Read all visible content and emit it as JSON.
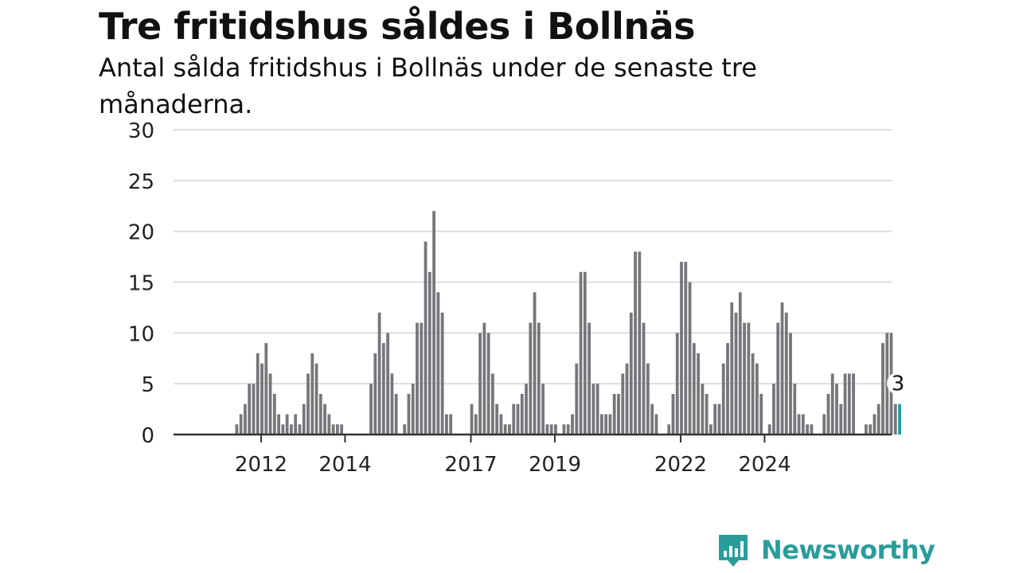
{
  "title": "Tre fritidshus såldes i Bollnäs",
  "subtitle": "Antal sålda fritidshus i Bollnäs under de senaste tre månaderna.",
  "brand": {
    "name": "Newsworthy",
    "color": "#2a9d9a",
    "icon": "bar-chart-speech-bubble-icon"
  },
  "colors": {
    "bar": "#77767a",
    "highlight": "#1f9ba0",
    "grid": "#dddddd",
    "axis": "#333333"
  },
  "chart_data": {
    "type": "bar",
    "title": "Tre fritidshus såldes i Bollnäs",
    "subtitle": "Antal sålda fritidshus i Bollnäs under de senaste tre månaderna.",
    "xlabel": "",
    "ylabel": "",
    "ylim": [
      0,
      30
    ],
    "yticks": [
      0,
      5,
      10,
      15,
      20,
      25,
      30
    ],
    "grid": true,
    "x_start": "2011-01",
    "xticks": [
      {
        "label": "2012",
        "index": 13
      },
      {
        "label": "2014",
        "index": 33
      },
      {
        "label": "2017",
        "index": 63
      },
      {
        "label": "2019",
        "index": 83
      },
      {
        "label": "2022",
        "index": 113
      },
      {
        "label": "2024",
        "index": 133
      }
    ],
    "values": [
      0,
      0,
      0,
      0,
      0,
      0,
      0,
      1,
      2,
      3,
      5,
      5,
      8,
      7,
      9,
      6,
      4,
      2,
      1,
      2,
      1,
      2,
      1,
      3,
      6,
      8,
      7,
      4,
      3,
      2,
      1,
      1,
      1,
      0,
      0,
      0,
      0,
      0,
      0,
      5,
      8,
      12,
      9,
      10,
      6,
      4,
      0,
      1,
      4,
      5,
      11,
      11,
      19,
      16,
      22,
      14,
      12,
      2,
      2,
      0,
      0,
      0,
      0,
      3,
      2,
      10,
      11,
      10,
      6,
      3,
      2,
      1,
      1,
      3,
      3,
      4,
      5,
      11,
      14,
      11,
      5,
      1,
      1,
      1,
      0,
      1,
      1,
      2,
      7,
      16,
      16,
      11,
      5,
      5,
      2,
      2,
      2,
      4,
      4,
      6,
      7,
      12,
      18,
      18,
      11,
      7,
      3,
      2,
      0,
      0,
      1,
      4,
      10,
      17,
      17,
      15,
      9,
      8,
      5,
      4,
      1,
      3,
      3,
      7,
      9,
      13,
      12,
      14,
      11,
      11,
      8,
      7,
      4,
      0,
      1,
      5,
      11,
      13,
      12,
      10,
      5,
      2,
      2,
      1,
      1,
      0,
      0,
      2,
      4,
      6,
      5,
      3,
      6,
      6,
      6,
      0,
      0,
      1,
      1,
      2,
      3,
      9,
      10,
      10,
      3,
      3
    ],
    "highlight_last": 1,
    "annotation": {
      "label": "3"
    }
  }
}
